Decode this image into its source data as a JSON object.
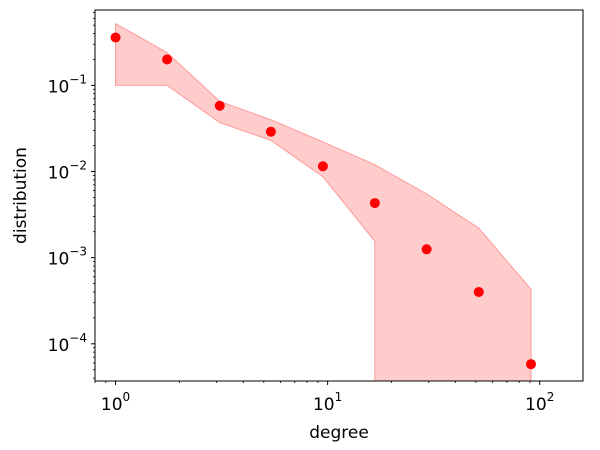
{
  "chart_data": {
    "type": "scatter",
    "title": "",
    "xlabel": "degree",
    "ylabel": "distribution",
    "xscale": "log",
    "yscale": "log",
    "xlim": [
      0.8,
      160
    ],
    "ylim": [
      3.7e-05,
      0.75
    ],
    "grid": false,
    "colors": {
      "points": "#ff0000",
      "band_fill": "#ffcccc",
      "band_edge": "#ff9999"
    },
    "x_ticks": [
      {
        "value": 1,
        "base": "10",
        "exp": "0"
      },
      {
        "value": 10,
        "base": "10",
        "exp": "1"
      },
      {
        "value": 100,
        "base": "10",
        "exp": "2"
      }
    ],
    "y_ticks": [
      {
        "value": 0.1,
        "base": "10",
        "exp": "−1"
      },
      {
        "value": 0.01,
        "base": "10",
        "exp": "−2"
      },
      {
        "value": 0.001,
        "base": "10",
        "exp": "−3"
      },
      {
        "value": 0.0001,
        "base": "10",
        "exp": "−4"
      }
    ],
    "points": [
      {
        "x": 1.0,
        "y": 0.36
      },
      {
        "x": 1.75,
        "y": 0.2
      },
      {
        "x": 3.1,
        "y": 0.058
      },
      {
        "x": 5.4,
        "y": 0.029
      },
      {
        "x": 9.5,
        "y": 0.0115
      },
      {
        "x": 16.7,
        "y": 0.0043
      },
      {
        "x": 29.3,
        "y": 0.00125
      },
      {
        "x": 51.6,
        "y": 0.0004
      },
      {
        "x": 91,
        "y": 5.8e-05
      }
    ],
    "band": {
      "upper": [
        {
          "x": 1.0,
          "y": 0.52
        },
        {
          "x": 1.75,
          "y": 0.24
        },
        {
          "x": 3.1,
          "y": 0.065
        },
        {
          "x": 5.4,
          "y": 0.04
        },
        {
          "x": 9.5,
          "y": 0.022
        },
        {
          "x": 16.7,
          "y": 0.012
        },
        {
          "x": 29.3,
          "y": 0.0055
        },
        {
          "x": 51.6,
          "y": 0.0022
        },
        {
          "x": 91,
          "y": 0.00043
        }
      ],
      "lower": [
        {
          "x": 1.0,
          "y": 0.1
        },
        {
          "x": 1.75,
          "y": 0.1
        },
        {
          "x": 3.1,
          "y": 0.037
        },
        {
          "x": 5.4,
          "y": 0.023
        },
        {
          "x": 9.5,
          "y": 0.0087
        },
        {
          "x": 16.7,
          "y": 0.00155
        },
        {
          "x": 16.7,
          "y": 3.7e-05
        },
        {
          "x": 91,
          "y": 3.7e-05
        }
      ]
    }
  }
}
